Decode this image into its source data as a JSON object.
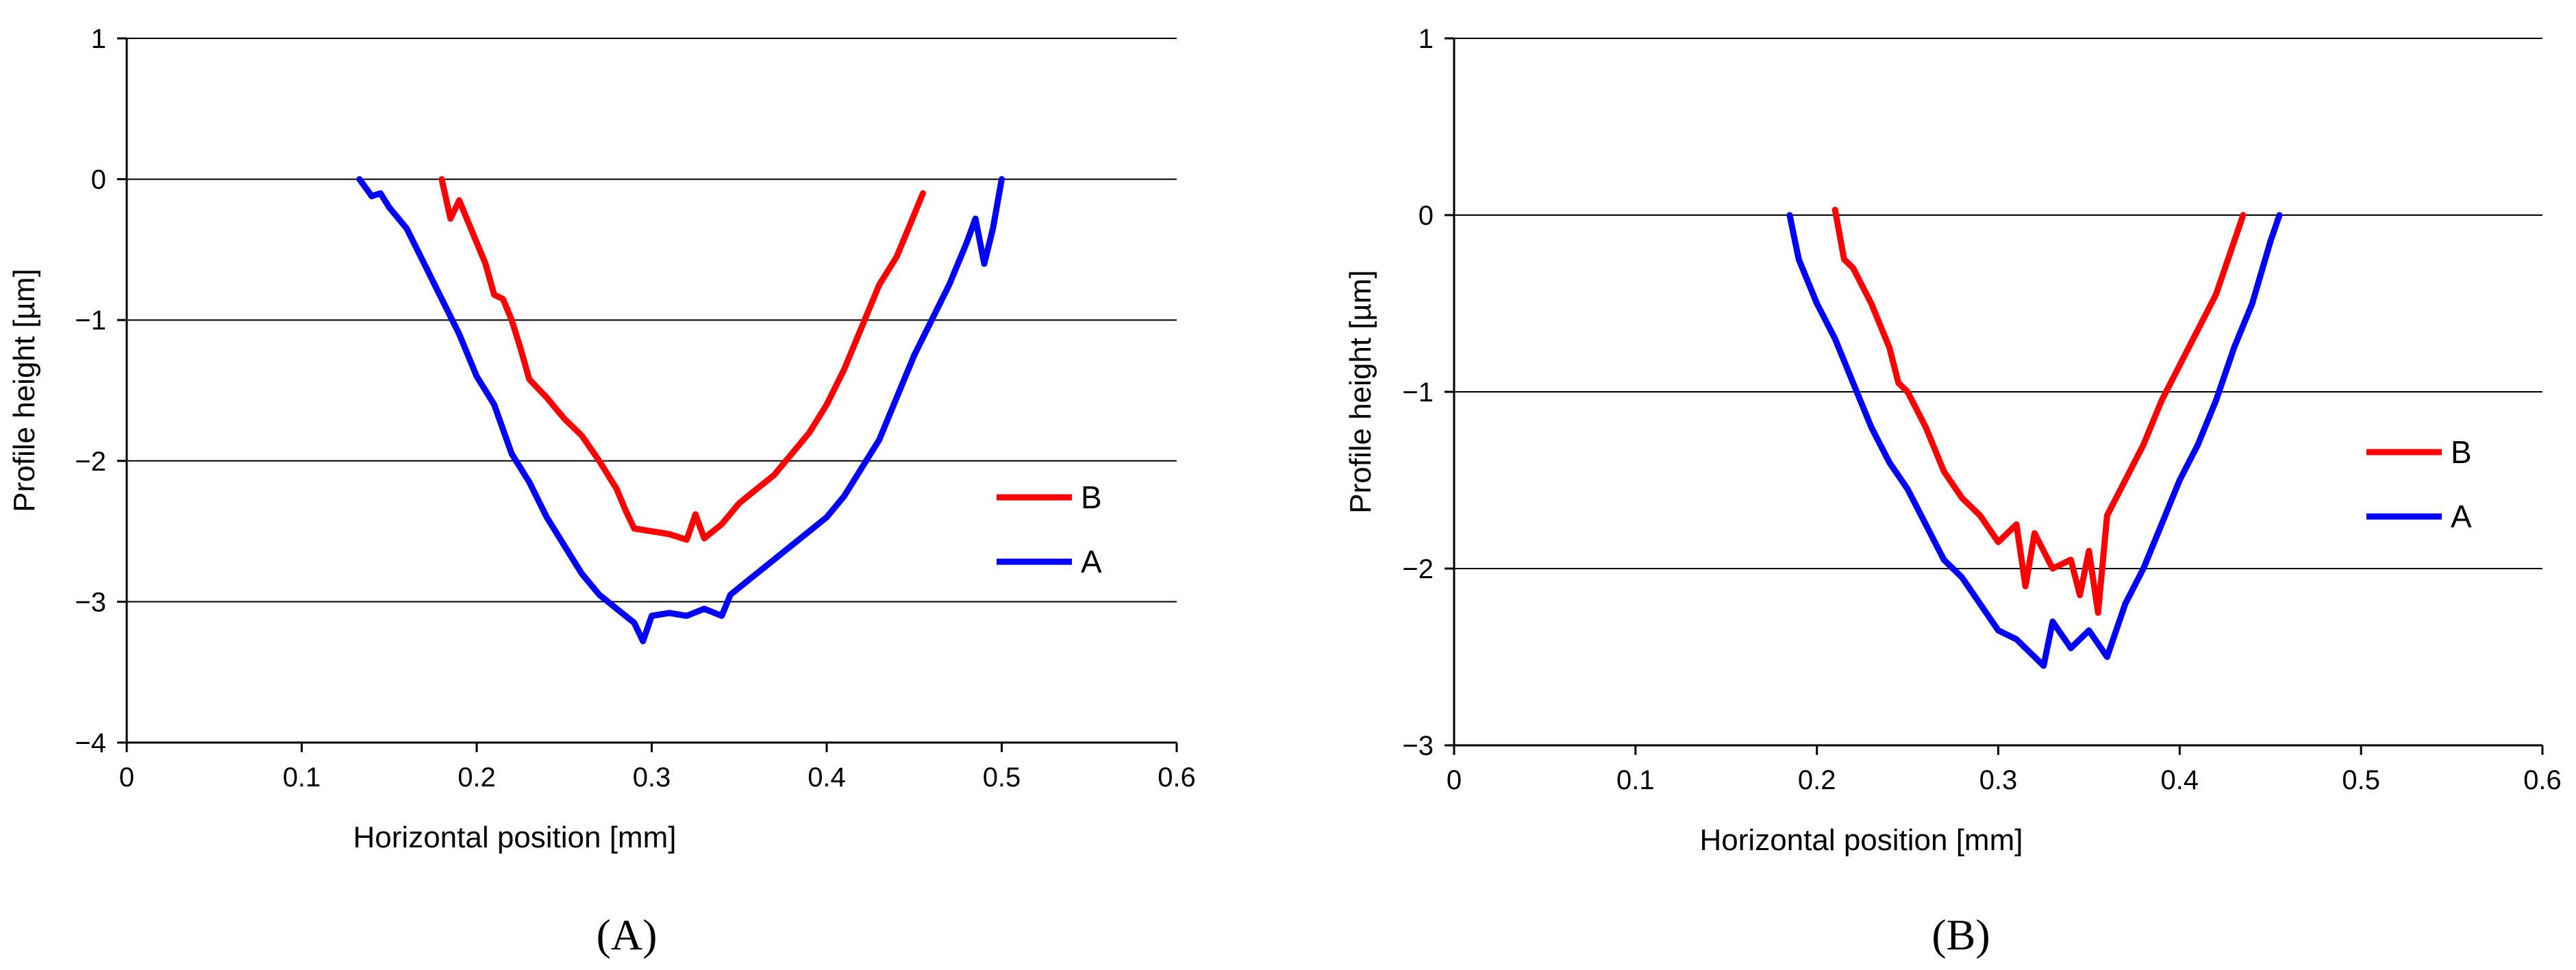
{
  "chart_data": [
    {
      "type": "line",
      "panel_label": "(A)",
      "xlabel": "Horizontal position [mm]",
      "ylabel": "Profile height [µm]",
      "xlim": [
        0,
        0.6
      ],
      "ylim": [
        -4,
        1
      ],
      "xticks": [
        0,
        0.1,
        0.2,
        0.3,
        0.4,
        0.5,
        0.6
      ],
      "yticks": [
        1,
        0,
        -1,
        -2,
        -3,
        -4
      ],
      "xtick_labels": [
        "0",
        "0.1",
        "0.2",
        "0.3",
        "0.4",
        "0.5",
        "0.6"
      ],
      "ytick_labels": [
        "1",
        "0",
        "−1",
        "−2",
        "−3",
        "−4"
      ],
      "grid": "horizontal",
      "legend_position": "right",
      "series": [
        {
          "name": "B",
          "color": "#ff0000",
          "points": [
            [
              0.18,
              0.0
            ],
            [
              0.185,
              -0.28
            ],
            [
              0.19,
              -0.15
            ],
            [
              0.195,
              -0.3
            ],
            [
              0.2,
              -0.45
            ],
            [
              0.205,
              -0.6
            ],
            [
              0.21,
              -0.82
            ],
            [
              0.215,
              -0.85
            ],
            [
              0.22,
              -1.0
            ],
            [
              0.225,
              -1.2
            ],
            [
              0.23,
              -1.42
            ],
            [
              0.24,
              -1.55
            ],
            [
              0.25,
              -1.7
            ],
            [
              0.26,
              -1.82
            ],
            [
              0.27,
              -2.0
            ],
            [
              0.28,
              -2.2
            ],
            [
              0.285,
              -2.35
            ],
            [
              0.29,
              -2.48
            ],
            [
              0.3,
              -2.5
            ],
            [
              0.31,
              -2.52
            ],
            [
              0.32,
              -2.56
            ],
            [
              0.325,
              -2.38
            ],
            [
              0.33,
              -2.55
            ],
            [
              0.34,
              -2.45
            ],
            [
              0.35,
              -2.3
            ],
            [
              0.36,
              -2.2
            ],
            [
              0.37,
              -2.1
            ],
            [
              0.38,
              -1.95
            ],
            [
              0.39,
              -1.8
            ],
            [
              0.4,
              -1.6
            ],
            [
              0.41,
              -1.35
            ],
            [
              0.42,
              -1.05
            ],
            [
              0.43,
              -0.75
            ],
            [
              0.44,
              -0.55
            ],
            [
              0.45,
              -0.25
            ],
            [
              0.455,
              -0.1
            ]
          ]
        },
        {
          "name": "A",
          "color": "#0000ff",
          "points": [
            [
              0.133,
              0.0
            ],
            [
              0.14,
              -0.12
            ],
            [
              0.145,
              -0.1
            ],
            [
              0.15,
              -0.2
            ],
            [
              0.16,
              -0.35
            ],
            [
              0.17,
              -0.6
            ],
            [
              0.18,
              -0.85
            ],
            [
              0.19,
              -1.1
            ],
            [
              0.2,
              -1.4
            ],
            [
              0.21,
              -1.6
            ],
            [
              0.22,
              -1.95
            ],
            [
              0.23,
              -2.15
            ],
            [
              0.24,
              -2.4
            ],
            [
              0.25,
              -2.6
            ],
            [
              0.26,
              -2.8
            ],
            [
              0.27,
              -2.95
            ],
            [
              0.28,
              -3.05
            ],
            [
              0.29,
              -3.15
            ],
            [
              0.295,
              -3.28
            ],
            [
              0.3,
              -3.1
            ],
            [
              0.31,
              -3.08
            ],
            [
              0.32,
              -3.1
            ],
            [
              0.33,
              -3.05
            ],
            [
              0.34,
              -3.1
            ],
            [
              0.345,
              -2.95
            ],
            [
              0.35,
              -2.9
            ],
            [
              0.36,
              -2.8
            ],
            [
              0.37,
              -2.7
            ],
            [
              0.38,
              -2.6
            ],
            [
              0.39,
              -2.5
            ],
            [
              0.4,
              -2.4
            ],
            [
              0.41,
              -2.25
            ],
            [
              0.42,
              -2.05
            ],
            [
              0.43,
              -1.85
            ],
            [
              0.44,
              -1.55
            ],
            [
              0.45,
              -1.25
            ],
            [
              0.46,
              -1.0
            ],
            [
              0.47,
              -0.75
            ],
            [
              0.48,
              -0.45
            ],
            [
              0.485,
              -0.28
            ],
            [
              0.49,
              -0.6
            ],
            [
              0.495,
              -0.35
            ],
            [
              0.5,
              0.0
            ]
          ]
        }
      ]
    },
    {
      "type": "line",
      "panel_label": "(B)",
      "xlabel": "Horizontal position [mm]",
      "ylabel": "Profile height [µm]",
      "xlim": [
        0,
        0.6
      ],
      "ylim": [
        -3,
        1
      ],
      "xticks": [
        0,
        0.1,
        0.2,
        0.3,
        0.4,
        0.5,
        0.6
      ],
      "yticks": [
        1,
        0,
        -1,
        -2,
        -3
      ],
      "xtick_labels": [
        "0",
        "0.1",
        "0.2",
        "0.3",
        "0.4",
        "0.5",
        "0.6"
      ],
      "ytick_labels": [
        "1",
        "0",
        "−1",
        "−2",
        "−3"
      ],
      "grid": "horizontal",
      "legend_position": "right",
      "series": [
        {
          "name": "B",
          "color": "#ff0000",
          "points": [
            [
              0.21,
              0.03
            ],
            [
              0.215,
              -0.25
            ],
            [
              0.22,
              -0.3
            ],
            [
              0.23,
              -0.5
            ],
            [
              0.24,
              -0.75
            ],
            [
              0.245,
              -0.95
            ],
            [
              0.25,
              -1.0
            ],
            [
              0.26,
              -1.2
            ],
            [
              0.27,
              -1.45
            ],
            [
              0.28,
              -1.6
            ],
            [
              0.29,
              -1.7
            ],
            [
              0.3,
              -1.85
            ],
            [
              0.31,
              -1.75
            ],
            [
              0.315,
              -2.1
            ],
            [
              0.32,
              -1.8
            ],
            [
              0.33,
              -2.0
            ],
            [
              0.34,
              -1.95
            ],
            [
              0.345,
              -2.15
            ],
            [
              0.35,
              -1.9
            ],
            [
              0.355,
              -2.25
            ],
            [
              0.36,
              -1.7
            ],
            [
              0.37,
              -1.5
            ],
            [
              0.38,
              -1.3
            ],
            [
              0.39,
              -1.05
            ],
            [
              0.4,
              -0.85
            ],
            [
              0.41,
              -0.65
            ],
            [
              0.42,
              -0.45
            ],
            [
              0.43,
              -0.15
            ],
            [
              0.435,
              0.0
            ]
          ]
        },
        {
          "name": "A",
          "color": "#0000ff",
          "points": [
            [
              0.185,
              0.0
            ],
            [
              0.19,
              -0.25
            ],
            [
              0.2,
              -0.5
            ],
            [
              0.21,
              -0.7
            ],
            [
              0.22,
              -0.95
            ],
            [
              0.23,
              -1.2
            ],
            [
              0.24,
              -1.4
            ],
            [
              0.25,
              -1.55
            ],
            [
              0.26,
              -1.75
            ],
            [
              0.27,
              -1.95
            ],
            [
              0.28,
              -2.05
            ],
            [
              0.29,
              -2.2
            ],
            [
              0.3,
              -2.35
            ],
            [
              0.31,
              -2.4
            ],
            [
              0.32,
              -2.5
            ],
            [
              0.325,
              -2.55
            ],
            [
              0.33,
              -2.3
            ],
            [
              0.34,
              -2.45
            ],
            [
              0.35,
              -2.35
            ],
            [
              0.36,
              -2.5
            ],
            [
              0.37,
              -2.2
            ],
            [
              0.38,
              -2.0
            ],
            [
              0.39,
              -1.75
            ],
            [
              0.4,
              -1.5
            ],
            [
              0.41,
              -1.3
            ],
            [
              0.42,
              -1.05
            ],
            [
              0.43,
              -0.75
            ],
            [
              0.44,
              -0.5
            ],
            [
              0.45,
              -0.15
            ],
            [
              0.455,
              0.0
            ]
          ]
        }
      ]
    }
  ]
}
